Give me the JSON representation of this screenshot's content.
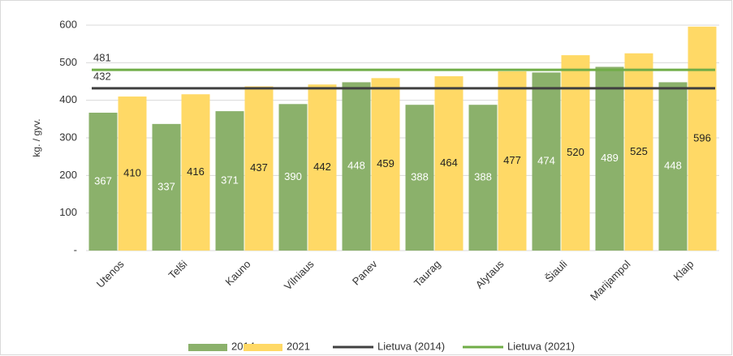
{
  "chart_data": {
    "type": "bar",
    "y_axis_label": "kg. / gyv.",
    "categories": [
      "Utenos",
      "Telši",
      "Kauno",
      "Vilniaus",
      "Panev",
      "Taurag",
      "Alytaus",
      "Šiauli",
      "Marijampol",
      "Klaip"
    ],
    "series": [
      {
        "name": "2014",
        "color": "#8bb16b",
        "values": [
          367,
          337,
          371,
          390,
          448,
          388,
          388,
          474,
          489,
          448
        ]
      },
      {
        "name": "2021",
        "color": "#ffd966",
        "values": [
          410,
          416,
          437,
          442,
          459,
          464,
          477,
          520,
          525,
          596
        ]
      }
    ],
    "reference_lines": [
      {
        "name": "Lietuva (2014)",
        "color": "#404040",
        "value": 432
      },
      {
        "name": "Lietuva (2021)",
        "color": "#70ad47",
        "value": 481
      }
    ],
    "ylim": [
      0,
      600
    ],
    "yticks": [
      {
        "value": 0,
        "label": "-"
      },
      100,
      200,
      300,
      400,
      500,
      600
    ],
    "grid": true,
    "legend": "bottom"
  }
}
